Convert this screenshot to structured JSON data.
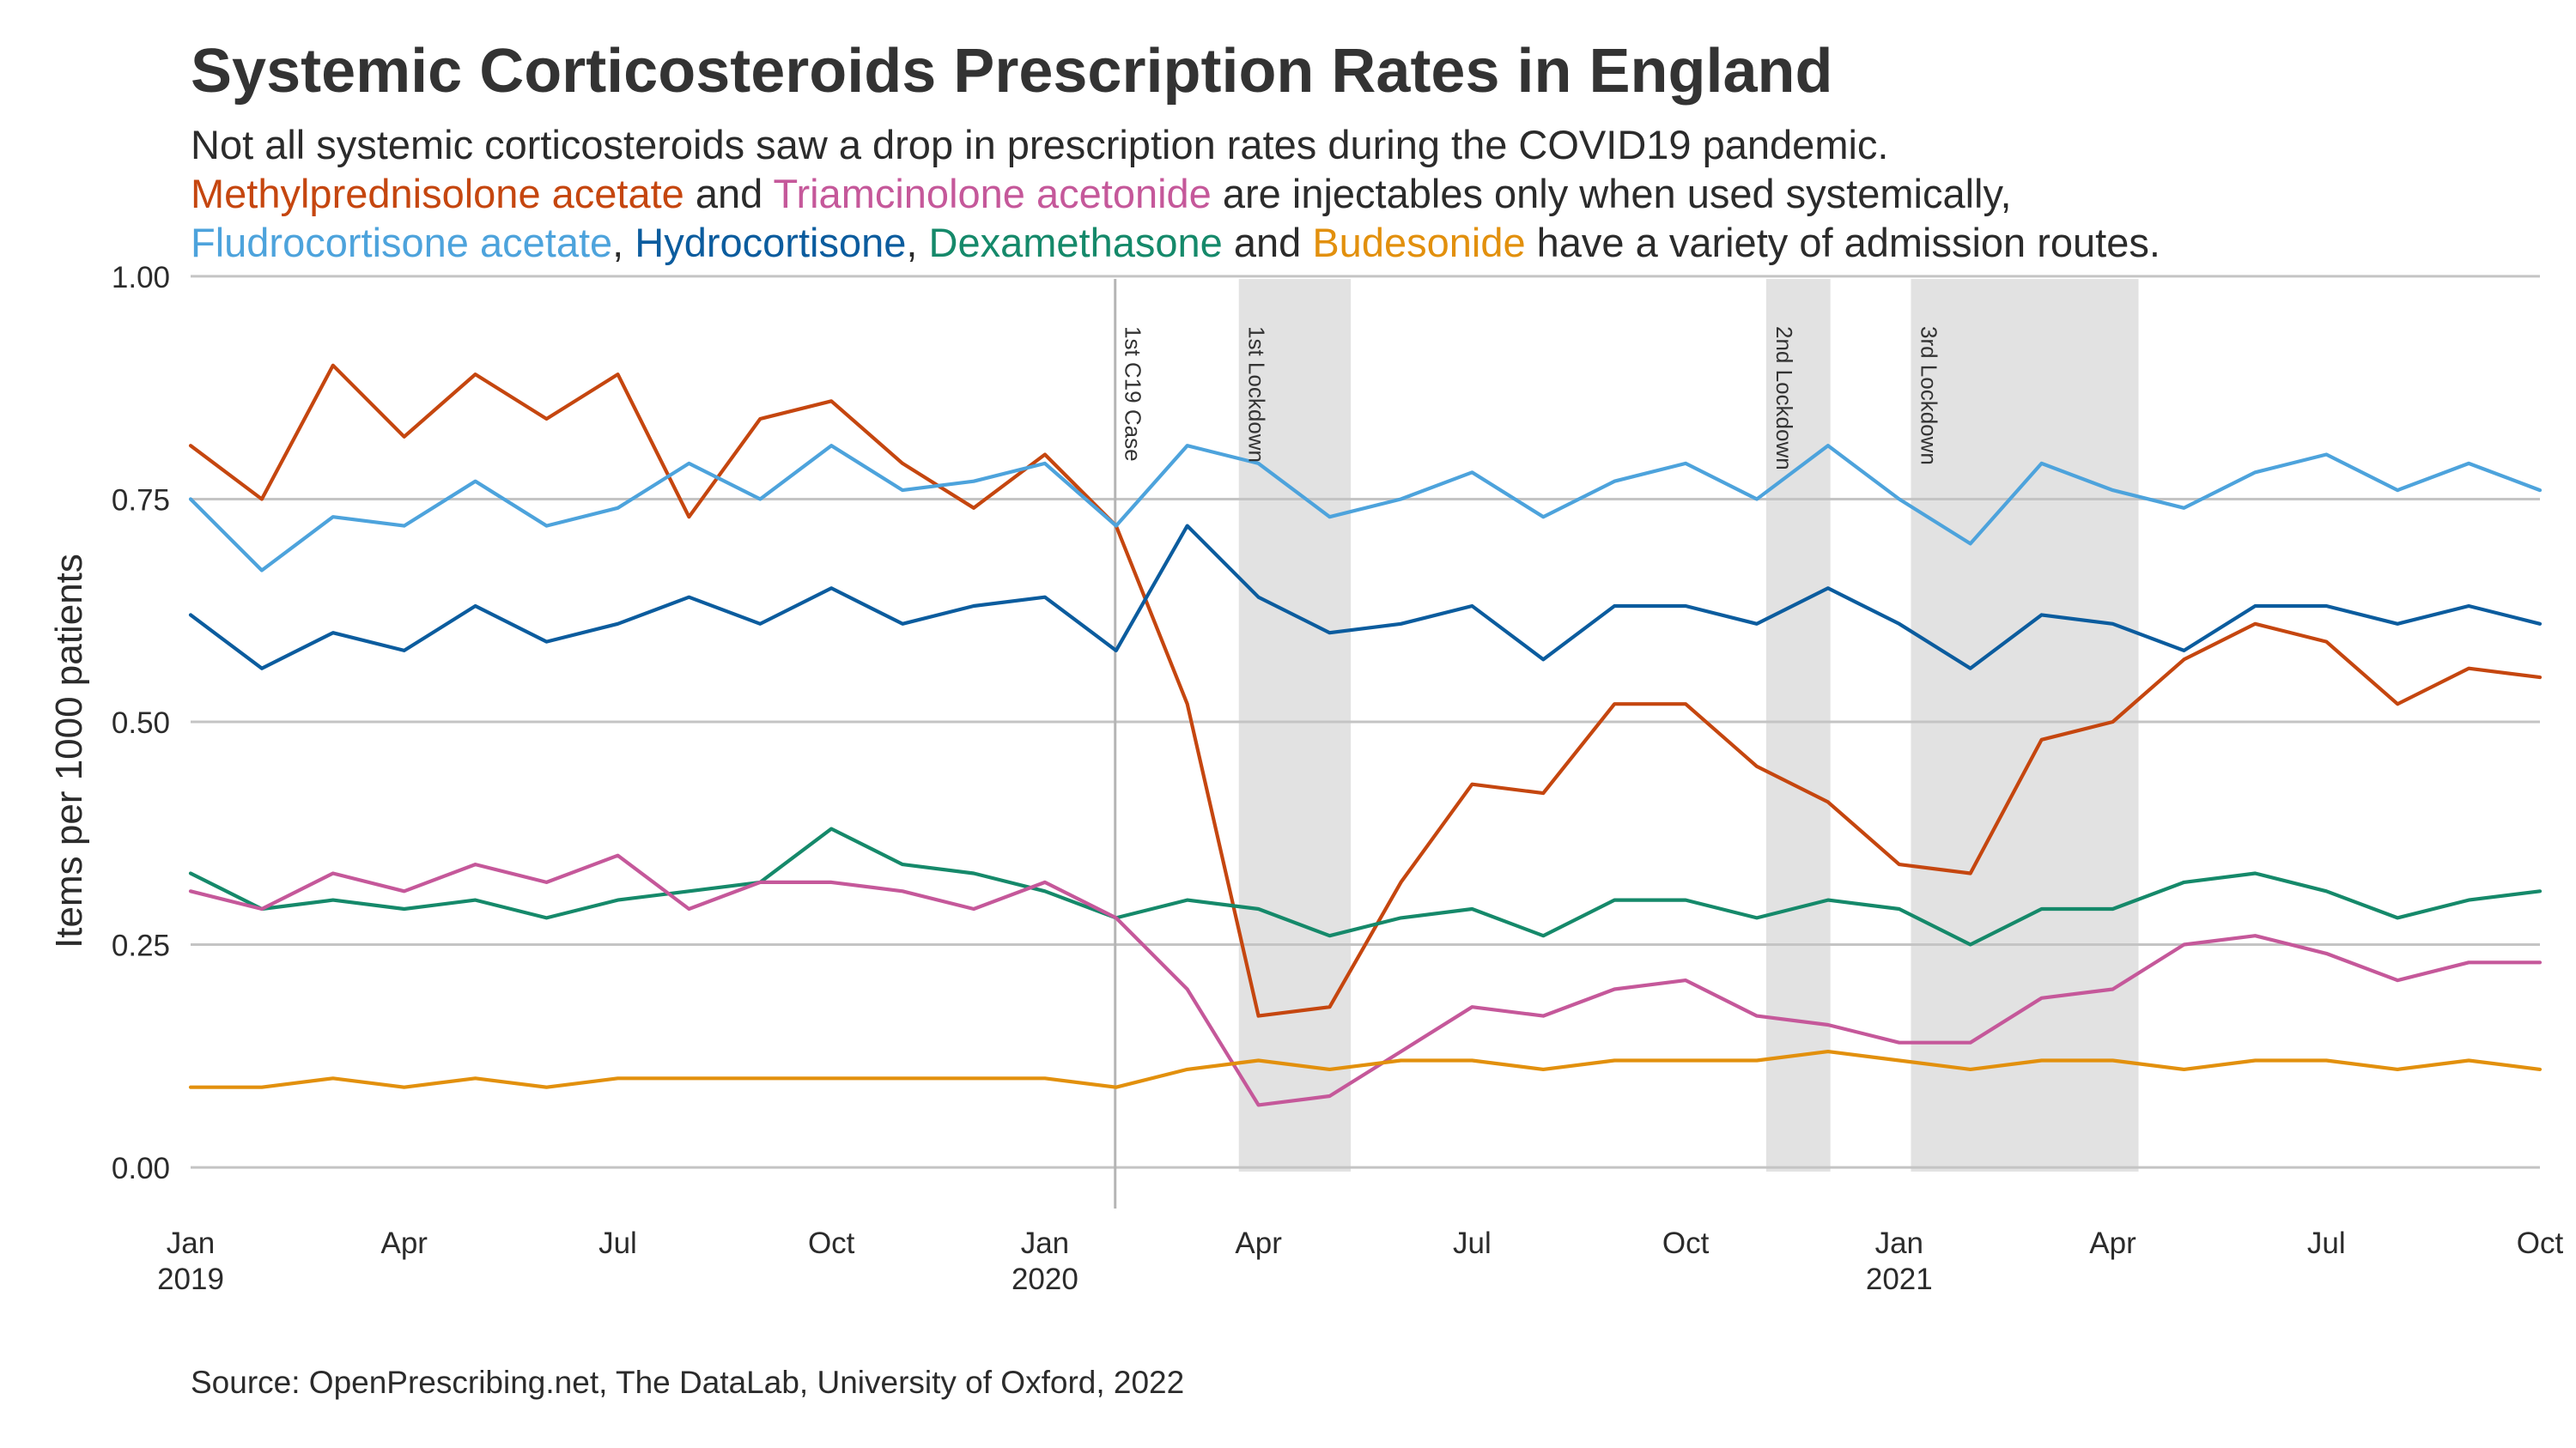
{
  "title": "Systemic Corticosteroids Prescription Rates in England",
  "subtitle": {
    "line1": "Not all systemic corticosteroids saw a drop in prescription rates during the COVID19 pandemic.",
    "line2": [
      {
        "text": "Methylprednisolone acetate",
        "series": "methyl"
      },
      {
        "text": " and ",
        "series": ""
      },
      {
        "text": "Triamcinolone acetonide",
        "series": "triam"
      },
      {
        "text": " are injectables only when used systemically,",
        "series": ""
      }
    ],
    "line3": [
      {
        "text": "Fludrocortisone acetate",
        "series": "fludro"
      },
      {
        "text": ", ",
        "series": ""
      },
      {
        "text": "Hydrocortisone",
        "series": "hydro"
      },
      {
        "text": ", ",
        "series": ""
      },
      {
        "text": "Dexamethasone",
        "series": "dexa"
      },
      {
        "text": " and ",
        "series": ""
      },
      {
        "text": "Budesonide",
        "series": "bude"
      },
      {
        "text": " have a variety of admission routes.",
        "series": ""
      }
    ]
  },
  "caption": "Source: OpenPrescribing.net, The DataLab, University of Oxford, 2022",
  "chart_data": {
    "type": "line",
    "title": "Systemic Corticosteroids Prescription Rates in England",
    "xlabel": "",
    "ylabel": "Items per 1000 patients",
    "x": [
      "2019-01",
      "2019-02",
      "2019-03",
      "2019-04",
      "2019-05",
      "2019-06",
      "2019-07",
      "2019-08",
      "2019-09",
      "2019-10",
      "2019-11",
      "2019-12",
      "2020-01",
      "2020-02",
      "2020-03",
      "2020-04",
      "2020-05",
      "2020-06",
      "2020-07",
      "2020-08",
      "2020-09",
      "2020-10",
      "2020-11",
      "2020-12",
      "2021-01",
      "2021-02",
      "2021-03",
      "2021-04",
      "2021-05",
      "2021-06",
      "2021-07",
      "2021-08",
      "2021-09",
      "2021-10"
    ],
    "xlim": [
      "2019-01",
      "2021-10"
    ],
    "ylim": [
      -0.05,
      1.05
    ],
    "yticks": [
      0.0,
      0.25,
      0.5,
      0.75,
      1.0
    ],
    "ytick_labels": [
      "0.00",
      "0.25",
      "0.50",
      "0.75",
      "1.00"
    ],
    "xticks": [
      {
        "x": "2019-01",
        "label": "Jan",
        "sub": "2019"
      },
      {
        "x": "2019-04",
        "label": "Apr",
        "sub": ""
      },
      {
        "x": "2019-07",
        "label": "Jul",
        "sub": ""
      },
      {
        "x": "2019-10",
        "label": "Oct",
        "sub": ""
      },
      {
        "x": "2020-01",
        "label": "Jan",
        "sub": "2020"
      },
      {
        "x": "2020-04",
        "label": "Apr",
        "sub": ""
      },
      {
        "x": "2020-07",
        "label": "Jul",
        "sub": ""
      },
      {
        "x": "2020-10",
        "label": "Oct",
        "sub": ""
      },
      {
        "x": "2021-01",
        "label": "Jan",
        "sub": "2021"
      },
      {
        "x": "2021-04",
        "label": "Apr",
        "sub": ""
      },
      {
        "x": "2021-07",
        "label": "Jul",
        "sub": ""
      },
      {
        "x": "2021-10",
        "label": "Oct",
        "sub": ""
      }
    ],
    "grid": "horizontal",
    "legend": "none",
    "annotations": [
      {
        "type": "vline",
        "x": "2020-01-31",
        "label": "1st C19 Case"
      },
      {
        "type": "band",
        "from": "2020-03-23",
        "to": "2020-05-10",
        "label": "1st Lockdown"
      },
      {
        "type": "band",
        "from": "2020-11-05",
        "to": "2020-12-02",
        "label": "2nd Lockdown"
      },
      {
        "type": "band",
        "from": "2021-01-06",
        "to": "2021-04-12",
        "label": "3rd Lockdown"
      }
    ],
    "series": [
      {
        "name": "Methylprednisolone acetate",
        "key": "methyl",
        "color": "#C5460F",
        "values": [
          0.81,
          0.75,
          0.9,
          0.82,
          0.89,
          0.84,
          0.89,
          0.73,
          0.84,
          0.86,
          0.79,
          0.74,
          0.8,
          0.72,
          0.52,
          0.17,
          0.18,
          0.32,
          0.43,
          0.42,
          0.52,
          0.52,
          0.45,
          0.41,
          0.34,
          0.33,
          0.48,
          0.5,
          0.57,
          0.61,
          0.59,
          0.52,
          0.56,
          0.55
        ]
      },
      {
        "name": "Fludrocortisone acetate",
        "key": "fludro",
        "color": "#4DA3DC",
        "values": [
          0.75,
          0.67,
          0.73,
          0.72,
          0.77,
          0.72,
          0.74,
          0.79,
          0.75,
          0.81,
          0.76,
          0.77,
          0.79,
          0.72,
          0.81,
          0.79,
          0.73,
          0.75,
          0.78,
          0.73,
          0.77,
          0.79,
          0.75,
          0.81,
          0.75,
          0.7,
          0.79,
          0.76,
          0.74,
          0.78,
          0.8,
          0.76,
          0.79,
          0.76
        ]
      },
      {
        "name": "Hydrocortisone",
        "key": "hydro",
        "color": "#0B5C9E",
        "values": [
          0.62,
          0.56,
          0.6,
          0.58,
          0.63,
          0.59,
          0.61,
          0.64,
          0.61,
          0.65,
          0.61,
          0.63,
          0.64,
          0.58,
          0.72,
          0.64,
          0.6,
          0.61,
          0.63,
          0.57,
          0.63,
          0.63,
          0.61,
          0.65,
          0.61,
          0.56,
          0.62,
          0.61,
          0.58,
          0.63,
          0.63,
          0.61,
          0.63,
          0.61
        ]
      },
      {
        "name": "Dexamethasone",
        "key": "dexa",
        "color": "#15896A",
        "values": [
          0.33,
          0.29,
          0.3,
          0.29,
          0.3,
          0.28,
          0.3,
          0.31,
          0.32,
          0.38,
          0.34,
          0.33,
          0.31,
          0.28,
          0.3,
          0.29,
          0.26,
          0.28,
          0.29,
          0.26,
          0.3,
          0.3,
          0.28,
          0.3,
          0.29,
          0.25,
          0.29,
          0.29,
          0.32,
          0.33,
          0.31,
          0.28,
          0.3,
          0.31
        ]
      },
      {
        "name": "Triamcinolone acetonide",
        "key": "triam",
        "color": "#C5589A",
        "values": [
          0.31,
          0.29,
          0.33,
          0.31,
          0.34,
          0.32,
          0.35,
          0.29,
          0.32,
          0.32,
          0.31,
          0.29,
          0.32,
          0.28,
          0.2,
          0.07,
          0.08,
          0.13,
          0.18,
          0.17,
          0.2,
          0.21,
          0.17,
          0.16,
          0.14,
          0.14,
          0.19,
          0.2,
          0.25,
          0.26,
          0.24,
          0.21,
          0.23,
          0.23
        ]
      },
      {
        "name": "Budesonide",
        "key": "bude",
        "color": "#E2900D",
        "values": [
          0.09,
          0.09,
          0.1,
          0.09,
          0.1,
          0.09,
          0.1,
          0.1,
          0.1,
          0.1,
          0.1,
          0.1,
          0.1,
          0.09,
          0.11,
          0.12,
          0.11,
          0.12,
          0.12,
          0.11,
          0.12,
          0.12,
          0.12,
          0.13,
          0.12,
          0.11,
          0.12,
          0.12,
          0.11,
          0.12,
          0.12,
          0.11,
          0.12,
          0.11
        ]
      }
    ]
  }
}
